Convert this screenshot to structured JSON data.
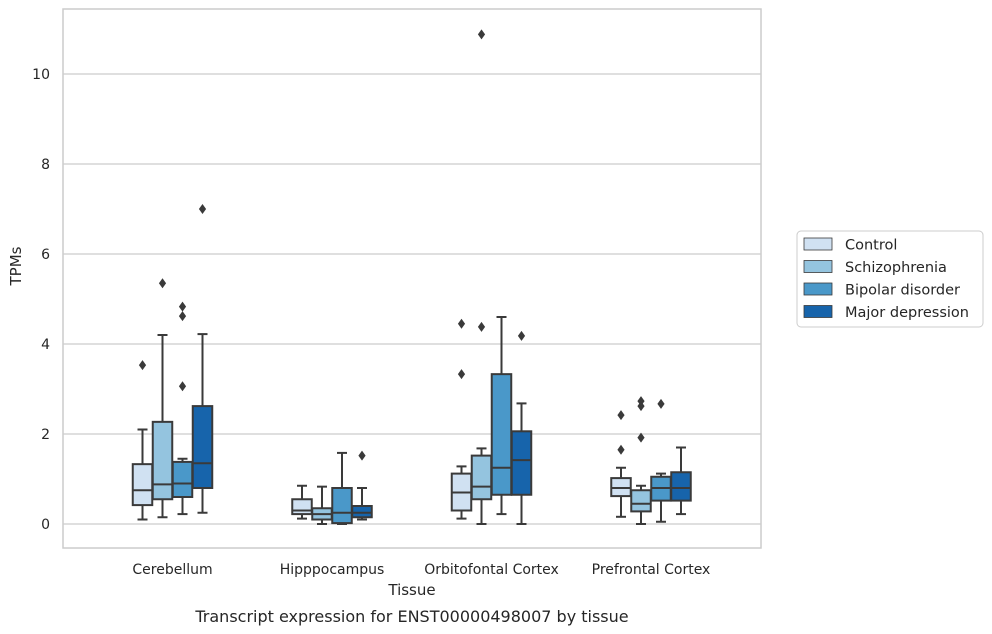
{
  "chart_data": {
    "type": "box",
    "caption": "Transcript expression for ENST00000498007 by tissue",
    "xlabel": "Tissue",
    "ylabel": "TPMs",
    "ylim": [
      -0.5,
      11.4
    ],
    "yticks": [
      0,
      2,
      4,
      6,
      8,
      10
    ],
    "grid": true,
    "legend_position": "right",
    "categories": [
      "Cerebellum",
      "Hipppocampus",
      "Orbitofontal Cortex",
      "Prefrontal Cortex"
    ],
    "series": [
      {
        "name": "Control",
        "color": "#d0e1f2",
        "boxes": [
          {
            "whislo": 0.1,
            "q1": 0.42,
            "med": 0.75,
            "q3": 1.33,
            "whishi": 2.1,
            "fliers": [
              3.53
            ]
          },
          {
            "whislo": 0.12,
            "q1": 0.22,
            "med": 0.3,
            "q3": 0.55,
            "whishi": 0.85,
            "fliers": []
          },
          {
            "whislo": 0.12,
            "q1": 0.3,
            "med": 0.7,
            "q3": 1.12,
            "whishi": 1.28,
            "fliers": [
              3.33,
              4.45
            ]
          },
          {
            "whislo": 0.16,
            "q1": 0.62,
            "med": 0.8,
            "q3": 1.02,
            "whishi": 1.25,
            "fliers": [
              1.65,
              2.42
            ]
          }
        ]
      },
      {
        "name": "Schizophrenia",
        "color": "#94c4df",
        "boxes": [
          {
            "whislo": 0.15,
            "q1": 0.55,
            "med": 0.88,
            "q3": 2.27,
            "whishi": 4.2,
            "fliers": [
              5.35
            ]
          },
          {
            "whislo": 0.0,
            "q1": 0.1,
            "med": 0.22,
            "q3": 0.35,
            "whishi": 0.83,
            "fliers": []
          },
          {
            "whislo": 0.0,
            "q1": 0.55,
            "med": 0.83,
            "q3": 1.52,
            "whishi": 1.68,
            "fliers": [
              4.38,
              10.88
            ]
          },
          {
            "whislo": 0.0,
            "q1": 0.28,
            "med": 0.45,
            "q3": 0.75,
            "whishi": 0.85,
            "fliers": [
              1.92,
              2.62,
              2.73
            ]
          }
        ]
      },
      {
        "name": "Bipolar disorder",
        "color": "#4a98c9",
        "boxes": [
          {
            "whislo": 0.22,
            "q1": 0.6,
            "med": 0.9,
            "q3": 1.38,
            "whishi": 1.45,
            "fliers": [
              3.06,
              4.62,
              4.83
            ]
          },
          {
            "whislo": 0.0,
            "q1": 0.02,
            "med": 0.25,
            "q3": 0.8,
            "whishi": 1.58,
            "fliers": []
          },
          {
            "whislo": 0.22,
            "q1": 0.65,
            "med": 1.25,
            "q3": 3.33,
            "whishi": 4.6,
            "fliers": []
          },
          {
            "whislo": 0.05,
            "q1": 0.52,
            "med": 0.8,
            "q3": 1.05,
            "whishi": 1.12,
            "fliers": [
              2.67
            ]
          }
        ]
      },
      {
        "name": "Major depression",
        "color": "#1764ab",
        "boxes": [
          {
            "whislo": 0.25,
            "q1": 0.8,
            "med": 1.35,
            "q3": 2.62,
            "whishi": 4.22,
            "fliers": [
              7.0
            ]
          },
          {
            "whislo": 0.1,
            "q1": 0.15,
            "med": 0.25,
            "q3": 0.4,
            "whishi": 0.8,
            "fliers": [
              1.52
            ]
          },
          {
            "whislo": 0.0,
            "q1": 0.65,
            "med": 1.42,
            "q3": 2.06,
            "whishi": 2.68,
            "fliers": [
              4.18
            ]
          },
          {
            "whislo": 0.22,
            "q1": 0.52,
            "med": 0.8,
            "q3": 1.15,
            "whishi": 1.7,
            "fliers": []
          }
        ]
      }
    ]
  }
}
